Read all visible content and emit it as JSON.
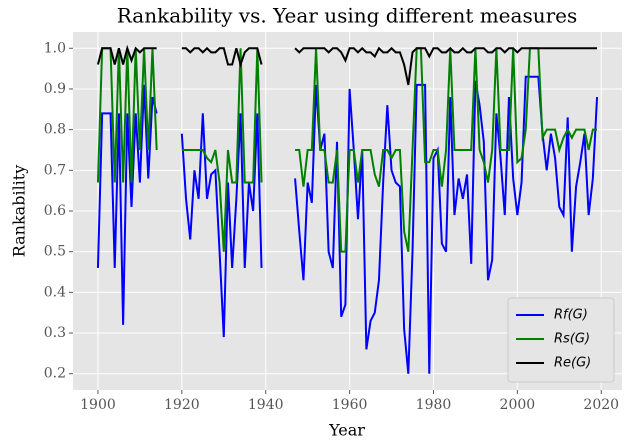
{
  "chart_data": {
    "type": "line",
    "title": "Rankability vs. Year using different measures",
    "xlabel": "Year",
    "ylabel": "Rankability",
    "x": [
      1900,
      1901,
      1902,
      1903,
      1904,
      1905,
      1906,
      1907,
      1908,
      1909,
      1910,
      1911,
      1912,
      1913,
      1914,
      1915,
      1916,
      1917,
      1918,
      1919,
      1920,
      1921,
      1922,
      1923,
      1924,
      1925,
      1926,
      1927,
      1928,
      1929,
      1930,
      1931,
      1932,
      1933,
      1934,
      1935,
      1936,
      1937,
      1938,
      1939,
      1940,
      1941,
      1942,
      1943,
      1944,
      1945,
      1946,
      1947,
      1948,
      1949,
      1950,
      1951,
      1952,
      1953,
      1954,
      1955,
      1956,
      1957,
      1958,
      1959,
      1960,
      1961,
      1962,
      1963,
      1964,
      1965,
      1966,
      1967,
      1968,
      1969,
      1970,
      1971,
      1972,
      1973,
      1974,
      1975,
      1976,
      1977,
      1978,
      1979,
      1980,
      1981,
      1982,
      1983,
      1984,
      1985,
      1986,
      1987,
      1988,
      1989,
      1990,
      1991,
      1992,
      1993,
      1994,
      1995,
      1996,
      1997,
      1998,
      1999,
      2000,
      2001,
      2002,
      2003,
      2004,
      2005,
      2006,
      2007,
      2008,
      2009,
      2010,
      2011,
      2012,
      2013,
      2014,
      2015,
      2016,
      2017,
      2018,
      2019
    ],
    "series": [
      {
        "name": "Rf(G)",
        "color": "#0000ff",
        "values": [
          0.46,
          0.84,
          0.84,
          0.84,
          0.46,
          0.84,
          0.32,
          0.84,
          0.61,
          0.84,
          0.67,
          0.91,
          0.68,
          0.88,
          0.84,
          null,
          null,
          null,
          null,
          null,
          0.79,
          0.63,
          0.53,
          0.7,
          0.63,
          0.84,
          0.63,
          0.69,
          0.7,
          0.5,
          0.29,
          0.67,
          0.46,
          0.63,
          0.84,
          0.46,
          0.67,
          0.6,
          0.84,
          0.46,
          null,
          null,
          null,
          null,
          null,
          null,
          null,
          0.68,
          0.55,
          0.43,
          0.67,
          0.62,
          0.91,
          0.75,
          0.79,
          0.5,
          0.46,
          0.77,
          0.34,
          0.37,
          0.9,
          0.75,
          0.58,
          0.75,
          0.26,
          0.33,
          0.35,
          0.43,
          0.67,
          0.86,
          0.7,
          0.67,
          0.66,
          0.31,
          0.2,
          0.5,
          0.91,
          0.91,
          0.91,
          0.2,
          0.73,
          0.75,
          0.52,
          0.5,
          0.88,
          0.59,
          0.68,
          0.63,
          0.69,
          0.47,
          0.92,
          0.86,
          0.77,
          0.43,
          0.48,
          0.84,
          0.73,
          0.59,
          0.88,
          0.68,
          0.59,
          0.67,
          0.93,
          0.93,
          0.93,
          0.93,
          0.79,
          0.7,
          0.79,
          0.73,
          0.61,
          0.59,
          0.83,
          0.5,
          0.66,
          0.72,
          0.79,
          0.59,
          0.68,
          0.88
        ]
      },
      {
        "name": "Rs(G)",
        "color": "#008000",
        "values": [
          0.67,
          1.0,
          1.0,
          1.0,
          0.67,
          1.0,
          0.67,
          1.0,
          0.67,
          1.0,
          0.75,
          1.0,
          0.75,
          1.0,
          0.75,
          null,
          null,
          null,
          null,
          null,
          0.75,
          0.75,
          0.75,
          0.75,
          0.75,
          0.75,
          0.73,
          0.72,
          0.75,
          0.67,
          0.5,
          0.75,
          0.67,
          0.67,
          1.0,
          0.67,
          0.67,
          0.67,
          1.0,
          0.67,
          null,
          null,
          null,
          null,
          null,
          null,
          null,
          0.75,
          0.75,
          0.66,
          0.75,
          0.75,
          1.0,
          0.75,
          0.75,
          0.67,
          0.67,
          0.75,
          0.5,
          0.5,
          0.75,
          0.75,
          0.67,
          0.75,
          0.75,
          0.75,
          0.69,
          0.66,
          0.75,
          0.75,
          0.73,
          0.75,
          0.75,
          0.55,
          0.5,
          0.75,
          1.0,
          1.0,
          0.72,
          0.72,
          0.75,
          0.75,
          0.66,
          0.75,
          1.0,
          0.75,
          0.75,
          0.75,
          0.75,
          0.75,
          1.0,
          0.75,
          0.72,
          0.67,
          0.75,
          1.0,
          0.75,
          0.75,
          0.75,
          1.0,
          0.72,
          0.73,
          0.8,
          1.0,
          1.0,
          1.0,
          0.78,
          0.8,
          0.8,
          0.8,
          0.75,
          0.78,
          0.8,
          0.78,
          0.8,
          0.8,
          0.8,
          0.75,
          0.8,
          0.8
        ]
      },
      {
        "name": "Re(G)",
        "color": "#000000",
        "values": [
          0.96,
          1.0,
          1.0,
          1.0,
          0.96,
          1.0,
          0.96,
          1.0,
          0.97,
          1.0,
          0.99,
          1.0,
          1.0,
          1.0,
          1.0,
          null,
          null,
          null,
          null,
          null,
          1.0,
          1.0,
          0.99,
          1.0,
          1.0,
          0.99,
          1.0,
          0.99,
          0.99,
          1.0,
          1.0,
          0.96,
          0.96,
          1.0,
          0.96,
          0.99,
          1.0,
          1.0,
          1.0,
          0.96,
          null,
          null,
          null,
          null,
          null,
          null,
          null,
          1.0,
          0.99,
          1.0,
          1.0,
          1.0,
          1.0,
          1.0,
          1.0,
          0.99,
          1.0,
          1.0,
          0.99,
          0.97,
          1.0,
          1.0,
          0.99,
          1.0,
          0.99,
          0.99,
          0.98,
          1.0,
          0.99,
          0.99,
          1.0,
          0.99,
          0.99,
          0.96,
          0.91,
          0.99,
          1.0,
          1.0,
          1.0,
          0.98,
          1.0,
          1.0,
          0.99,
          0.99,
          1.0,
          0.99,
          0.99,
          1.0,
          0.99,
          0.99,
          1.0,
          1.0,
          1.0,
          0.99,
          0.99,
          1.0,
          1.0,
          0.99,
          1.0,
          1.0,
          0.99,
          1.0,
          1.0,
          1.0,
          1.0,
          1.0,
          1.0,
          1.0,
          1.0,
          1.0,
          1.0,
          1.0,
          1.0,
          1.0,
          1.0,
          1.0,
          1.0,
          1.0,
          1.0,
          1.0
        ]
      }
    ],
    "xlim": [
      1894.05,
      2024.95
    ],
    "xticks": [
      1900,
      1920,
      1940,
      1960,
      1980,
      2000,
      2020
    ],
    "ylim": [
      0.16,
      1.04
    ],
    "yticks": [
      0.2,
      0.3,
      0.4,
      0.5,
      0.6,
      0.7,
      0.8,
      0.9,
      {
        "value": 1,
        "label": "1.0"
      }
    ],
    "grid": true,
    "legend": "lower right"
  }
}
